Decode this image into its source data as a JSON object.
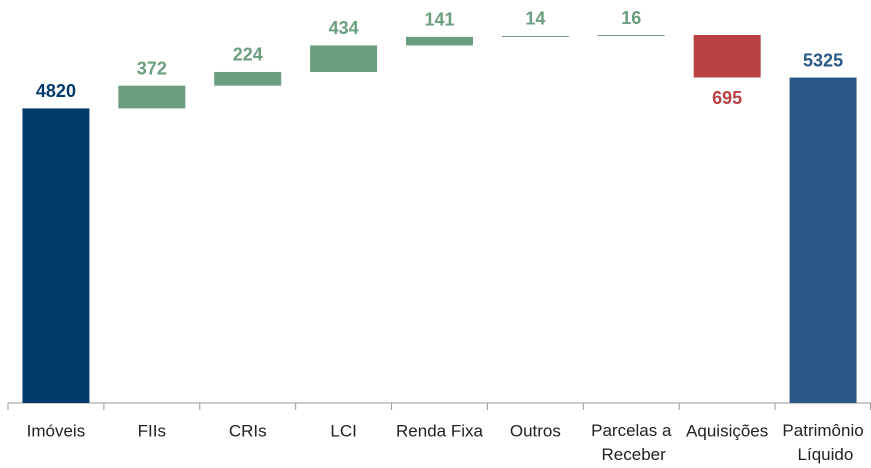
{
  "chart_data": {
    "type": "waterfall",
    "categories": [
      "Imóveis",
      "FIIs",
      "CRIs",
      "LCI",
      "Renda Fixa",
      "Outros",
      "Parcelas a Receber",
      "Aquisições",
      "Patrimônio Líquido"
    ],
    "values": [
      4820,
      372,
      224,
      434,
      141,
      14,
      16,
      -695,
      5325
    ],
    "value_labels": [
      "4820",
      "372",
      "224",
      "434",
      "141",
      "14",
      "16",
      "695",
      "5325"
    ],
    "measure": [
      "absolute",
      "relative",
      "relative",
      "relative",
      "relative",
      "relative",
      "relative",
      "relative",
      "total"
    ],
    "colors": [
      "#013a6b",
      "#6b9e7f",
      "#6b9e7f",
      "#6b9e7f",
      "#6b9e7f",
      "#6b9e7f",
      "#6b9e7f",
      "#b94141",
      "#2a5886"
    ]
  }
}
